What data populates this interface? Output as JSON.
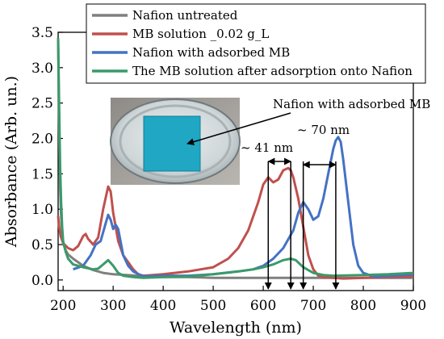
{
  "chart_data": {
    "type": "line",
    "xlabel": "Wavelength (nm)",
    "ylabel": "Absorbance (Arb. un.)",
    "xlim": [
      190,
      900
    ],
    "ylim": [
      -0.15,
      3.5
    ],
    "xticks": [
      200,
      300,
      400,
      500,
      600,
      700,
      800,
      900
    ],
    "yticks": [
      0.0,
      0.5,
      1.0,
      1.5,
      2.0,
      2.5,
      3.0,
      3.5
    ],
    "xtick_labels": [
      "200",
      "300",
      "400",
      "500",
      "600",
      "700",
      "800",
      "900"
    ],
    "ytick_labels": [
      "0.0",
      "0.5",
      "1.0",
      "1.5",
      "2.0",
      "2.5",
      "3.0",
      "3.5"
    ],
    "grid": false,
    "legend_position": "top-right",
    "series": [
      {
        "name": "Nafion untreated",
        "color": "#7f7f7f",
        "x": [
          190,
          192,
          194,
          196,
          198,
          200,
          205,
          210,
          220,
          230,
          240,
          260,
          280,
          300,
          350,
          400,
          450,
          500,
          600,
          700,
          800,
          900
        ],
        "y": [
          3.4,
          2.2,
          1.3,
          0.9,
          0.65,
          0.52,
          0.42,
          0.36,
          0.3,
          0.25,
          0.2,
          0.14,
          0.1,
          0.08,
          0.06,
          0.04,
          0.04,
          0.03,
          0.03,
          0.03,
          0.03,
          0.03
        ]
      },
      {
        "name": "MB solution _0.02 g_L",
        "color": "#c0504d",
        "x": [
          190,
          192,
          195,
          200,
          210,
          220,
          230,
          240,
          245,
          250,
          260,
          270,
          280,
          290,
          295,
          300,
          310,
          320,
          330,
          340,
          350,
          360,
          380,
          400,
          450,
          500,
          530,
          550,
          570,
          590,
          600,
          610,
          620,
          630,
          640,
          650,
          655,
          660,
          670,
          680,
          690,
          700,
          710,
          720,
          740,
          760,
          800,
          850,
          900
        ],
        "y": [
          0.9,
          0.75,
          0.62,
          0.52,
          0.45,
          0.42,
          0.48,
          0.62,
          0.65,
          0.58,
          0.5,
          0.6,
          1.0,
          1.32,
          1.25,
          0.95,
          0.55,
          0.35,
          0.25,
          0.15,
          0.08,
          0.06,
          0.07,
          0.08,
          0.12,
          0.18,
          0.3,
          0.45,
          0.7,
          1.1,
          1.35,
          1.45,
          1.38,
          1.42,
          1.55,
          1.58,
          1.55,
          1.45,
          1.15,
          0.75,
          0.35,
          0.15,
          0.06,
          0.04,
          0.03,
          0.02,
          0.03,
          0.04,
          0.05
        ]
      },
      {
        "name": "Nafion with adsorbed MB",
        "color": "#4472c4",
        "x": [
          220,
          240,
          255,
          265,
          275,
          285,
          290,
          295,
          300,
          305,
          310,
          320,
          330,
          340,
          360,
          400,
          450,
          500,
          550,
          580,
          600,
          620,
          640,
          660,
          670,
          680,
          690,
          700,
          710,
          720,
          730,
          740,
          745,
          750,
          755,
          760,
          770,
          780,
          790,
          800,
          820,
          850,
          900
        ],
        "y": [
          0.15,
          0.2,
          0.35,
          0.5,
          0.55,
          0.8,
          0.92,
          0.85,
          0.72,
          0.78,
          0.72,
          0.35,
          0.2,
          0.12,
          0.05,
          0.06,
          0.06,
          0.08,
          0.12,
          0.15,
          0.2,
          0.3,
          0.45,
          0.7,
          0.95,
          1.1,
          1.0,
          0.85,
          0.9,
          1.15,
          1.5,
          1.85,
          1.97,
          2.02,
          1.95,
          1.7,
          1.1,
          0.5,
          0.2,
          0.1,
          0.05,
          0.06,
          0.08
        ]
      },
      {
        "name": "The MB solution after adsorption onto Nafion",
        "color": "#3a9a6a",
        "x": [
          190,
          192,
          194,
          196,
          198,
          200,
          205,
          210,
          220,
          240,
          260,
          270,
          280,
          290,
          300,
          310,
          320,
          340,
          360,
          400,
          450,
          500,
          550,
          580,
          600,
          620,
          640,
          655,
          665,
          680,
          700,
          720,
          740,
          800,
          850,
          900
        ],
        "y": [
          3.42,
          2.5,
          1.6,
          1.1,
          0.75,
          0.55,
          0.4,
          0.3,
          0.22,
          0.18,
          0.15,
          0.16,
          0.22,
          0.28,
          0.2,
          0.1,
          0.06,
          0.04,
          0.03,
          0.04,
          0.05,
          0.08,
          0.12,
          0.15,
          0.18,
          0.22,
          0.28,
          0.3,
          0.28,
          0.18,
          0.1,
          0.07,
          0.06,
          0.07,
          0.08,
          0.1
        ]
      }
    ],
    "annotations": {
      "inset_label": "Nafion with adsorbed MB",
      "shift_41": "~ 41 nm",
      "shift_70": "~ 70 nm",
      "arrow_wavelengths": [
        610,
        655,
        680,
        745
      ]
    }
  }
}
